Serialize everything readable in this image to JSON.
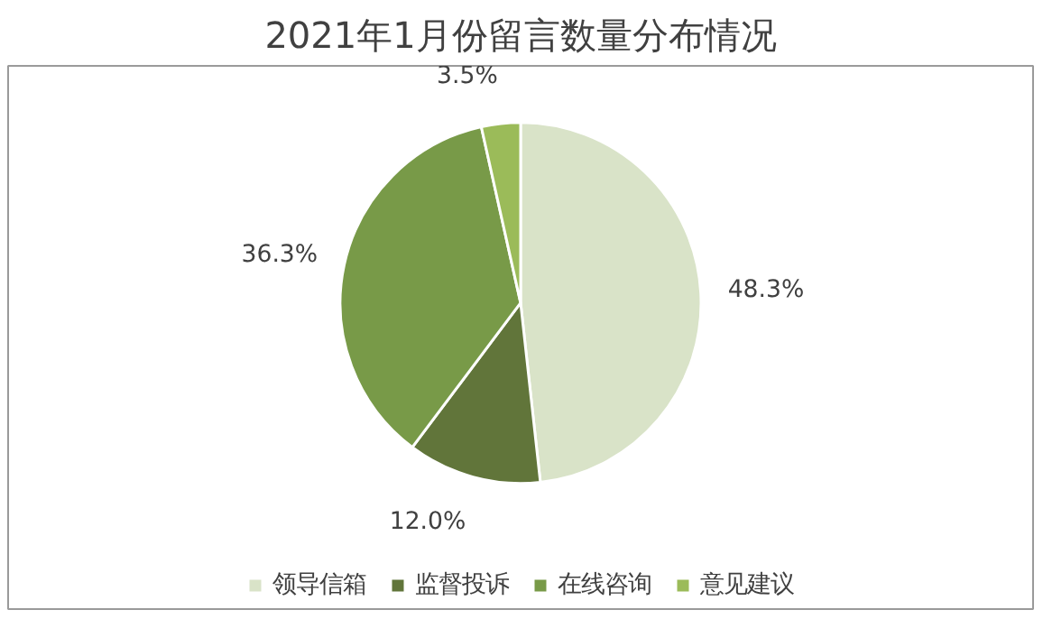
{
  "chart_data": {
    "type": "pie",
    "title": "2021年1月份留言数量分布情况",
    "categories": [
      "领导信箱",
      "监督投诉",
      "在线咨询",
      "意见建议"
    ],
    "values": [
      48.3,
      12.0,
      36.3,
      3.5
    ],
    "colors": [
      "#d9e3c8",
      "#61753a",
      "#789a48",
      "#9bbb59"
    ],
    "value_labels": [
      "48.3%",
      "12.0%",
      "36.3%",
      "3.5%"
    ],
    "legend": "bottom"
  }
}
